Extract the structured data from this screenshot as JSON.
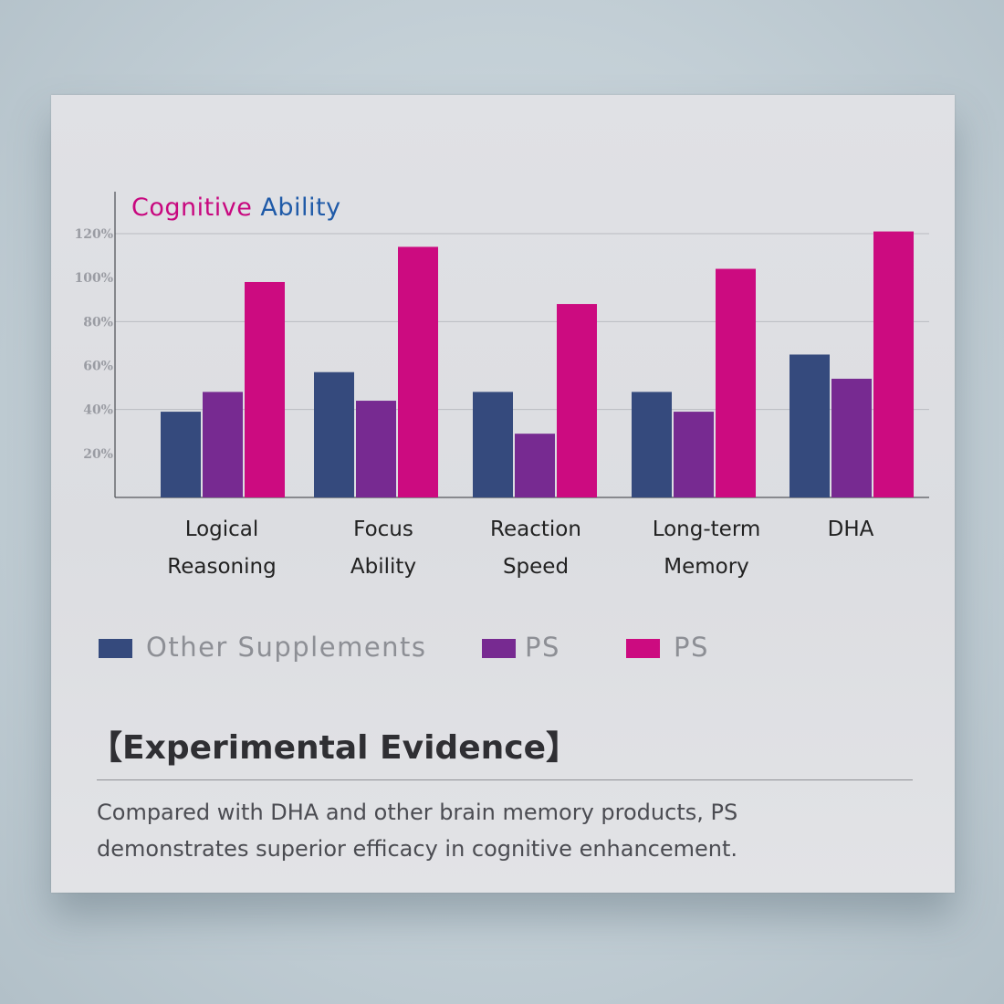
{
  "chart_data": {
    "type": "bar",
    "title": "Cognitive Ability",
    "title_colors": [
      "#c8087f",
      "#1f5aa8"
    ],
    "categories": [
      [
        "Logical",
        "Reasoning"
      ],
      [
        "Focus",
        "Ability"
      ],
      [
        "Reaction",
        "Speed"
      ],
      [
        "Long-term",
        "Memory"
      ],
      [
        "DHA"
      ]
    ],
    "yticks": [
      "20%",
      "40%",
      "60%",
      "80%",
      "100%",
      "120%"
    ],
    "ylim": [
      0,
      135
    ],
    "grid": true,
    "series": [
      {
        "name": "Other Supplements",
        "color": "#354a7d",
        "values": [
          39,
          57,
          48,
          48,
          65
        ]
      },
      {
        "name": "PS",
        "color": "#772a91",
        "values": [
          48,
          44,
          29,
          39,
          54
        ]
      },
      {
        "name": "PS",
        "color": "#cc0b80",
        "values": [
          98,
          114,
          88,
          104,
          121
        ]
      }
    ]
  },
  "legend": {
    "items": [
      {
        "label": "Other Supplements",
        "color": "#354a7d"
      },
      {
        "label": "PS",
        "color": "#772a91"
      },
      {
        "label": "PS",
        "color": "#cc0b80"
      }
    ]
  },
  "evidence": {
    "title": "【Experimental Evidence】",
    "description": "Compared with DHA and other brain memory products,  PS demonstrates superior efficacy in cognitive enhancement."
  }
}
